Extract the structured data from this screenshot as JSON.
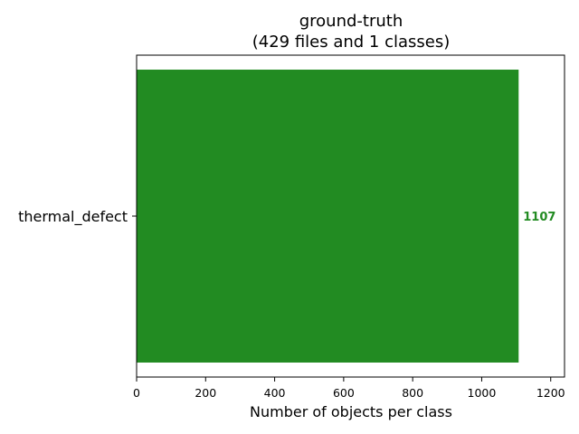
{
  "chart_data": {
    "type": "bar",
    "orientation": "horizontal",
    "title": "ground-truth",
    "subtitle": "(429 files and 1 classes)",
    "categories": [
      "thermal_defect"
    ],
    "values": [
      1107
    ],
    "data_labels": [
      "1107"
    ],
    "xlabel": "Number of objects per class",
    "ylabel": "",
    "xlim": [
      0,
      1240
    ],
    "xticks": [
      0,
      200,
      400,
      600,
      800,
      1000,
      1200
    ],
    "xtick_labels": [
      "0",
      "200",
      "400",
      "600",
      "800",
      "1000",
      "1200"
    ],
    "grid": false,
    "bar_color": "#228b22",
    "label_color": "#228b22"
  }
}
